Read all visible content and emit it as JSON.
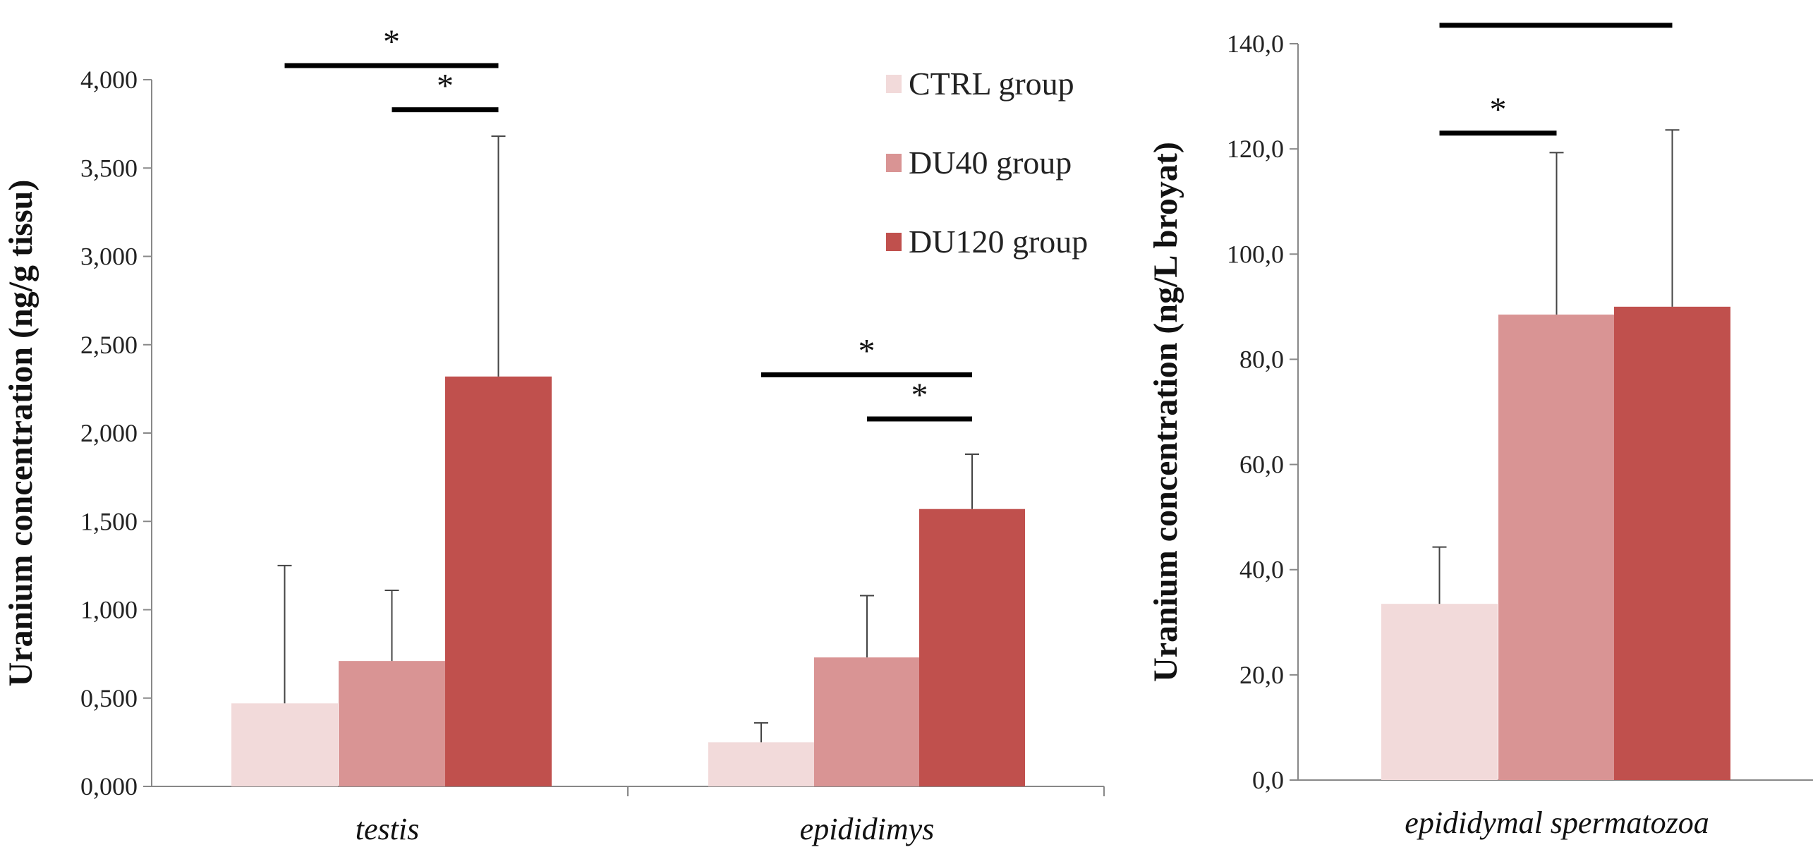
{
  "legend": {
    "entries": [
      {
        "label": "CTRL group",
        "color": "#f2dada"
      },
      {
        "label": "DU40 group",
        "color": "#d99494"
      },
      {
        "label": "DU120 group",
        "color": "#c0504d"
      }
    ]
  },
  "chart_data": [
    {
      "type": "bar",
      "ylabel": "Uranium  concentration (ng/g tissu)",
      "ylim": [
        0,
        4
      ],
      "yticks": [
        "0,000",
        "0,500",
        "1,000",
        "1,500",
        "2,000",
        "2,500",
        "3,000",
        "3,500",
        "4,000"
      ],
      "categories": [
        "testis",
        "epididimys"
      ],
      "series": [
        {
          "name": "CTRL group",
          "values": [
            0.47,
            0.25
          ],
          "errors": [
            0.78,
            0.11
          ]
        },
        {
          "name": "DU40 group",
          "values": [
            0.71,
            0.73
          ],
          "errors": [
            0.4,
            0.35
          ]
        },
        {
          "name": "DU120 group",
          "values": [
            2.32,
            1.57
          ],
          "errors": [
            1.36,
            0.31
          ]
        }
      ],
      "significance": [
        {
          "category": 0,
          "from_series": 0,
          "to_series": 2,
          "y": 4.08,
          "label": "*"
        },
        {
          "category": 0,
          "from_series": 1,
          "to_series": 2,
          "y": 3.83,
          "label": "*"
        },
        {
          "category": 1,
          "from_series": 0,
          "to_series": 2,
          "y": 2.33,
          "label": "*"
        },
        {
          "category": 1,
          "from_series": 1,
          "to_series": 2,
          "y": 2.08,
          "label": "*"
        }
      ],
      "grid": false
    },
    {
      "type": "bar",
      "ylabel": "Uranium  concentration (ng/L broyat)",
      "ylim": [
        0,
        140
      ],
      "yticks": [
        "0,0",
        "20,0",
        "40,0",
        "60,0",
        "80,0",
        "100,0",
        "120,0",
        "140,0"
      ],
      "categories": [
        "epididymal spermatozoa"
      ],
      "series": [
        {
          "name": "CTRL group",
          "values": [
            33.5
          ],
          "errors": [
            10.8
          ]
        },
        {
          "name": "DU40 group",
          "values": [
            88.5
          ],
          "errors": [
            30.8
          ]
        },
        {
          "name": "DU120 group",
          "values": [
            90.0
          ],
          "errors": [
            33.6
          ]
        }
      ],
      "significance": [
        {
          "category": 0,
          "from_series": 0,
          "to_series": 2,
          "y": 143.5,
          "label": ""
        },
        {
          "category": 0,
          "from_series": 0,
          "to_series": 1,
          "y": 123.0,
          "label": "*"
        }
      ],
      "grid": false
    }
  ]
}
